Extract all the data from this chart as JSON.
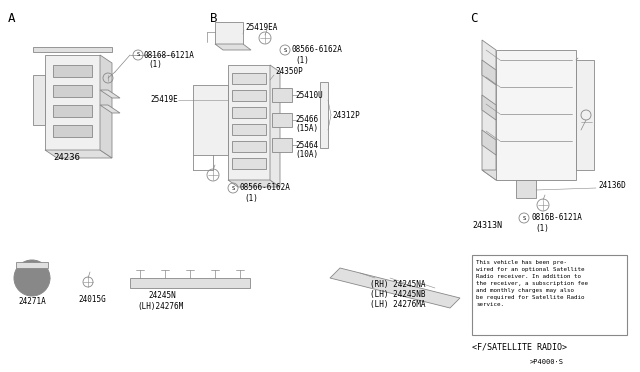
{
  "background_color": "#ffffff",
  "line_color": "#888888",
  "text_color": "#000000",
  "section_labels": [
    "A",
    "B",
    "C"
  ],
  "note_text": "This vehicle has been pre-\nwired for an optional Satellite\nRadio receiver. In addition to\nthe receiver, a subscription fee\nand monthly charges may also\nbe required for Satellite Radio\nservice.",
  "page_num": ">P4000·S"
}
